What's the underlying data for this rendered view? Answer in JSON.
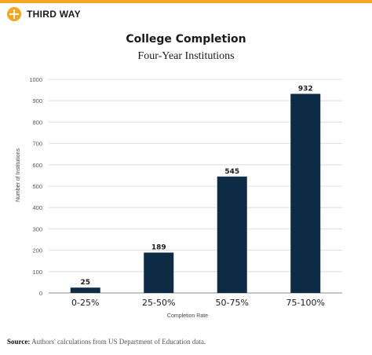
{
  "brand": {
    "name": "THIRD WAY",
    "color": "#f5a623"
  },
  "chart_data": {
    "type": "bar",
    "title": "College Completion",
    "subtitle": "Four-Year Institutions",
    "xlabel": "Completion Rate",
    "ylabel": "Number of Institutions",
    "categories": [
      "0-25%",
      "25-50%",
      "50-75%",
      "75-100%"
    ],
    "values": [
      25,
      189,
      545,
      932
    ],
    "data_labels": [
      "25",
      "189",
      "545",
      "932"
    ],
    "ylim": [
      0,
      1000
    ],
    "yticks": [
      "0",
      "100",
      "200",
      "300",
      "400",
      "500",
      "600",
      "700",
      "800",
      "900",
      "1000"
    ],
    "grid": true,
    "bar_color": "#0d2b45",
    "legend": false
  },
  "source": {
    "label": "Source:",
    "text": "Authors' calculations from US Department of Education data."
  }
}
